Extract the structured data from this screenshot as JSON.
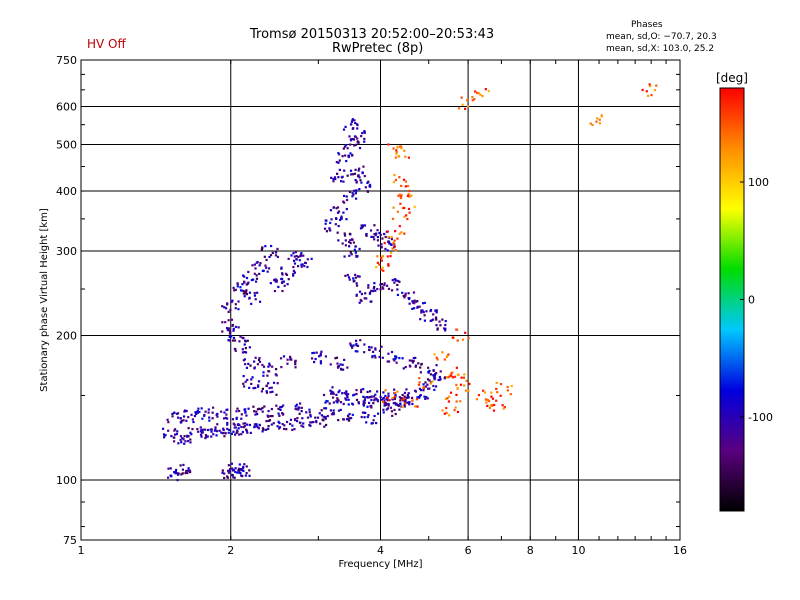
{
  "header": {
    "hv_status": "HV Off",
    "title_line1": "Tromsø 20150313 20:52:00–20:53:43",
    "title_line2": "RwPretec (8p)",
    "phases_title": "Phases",
    "phases_o": "mean, sd,O: −70.7, 20.3",
    "phases_x": "mean, sd,X: 103.0, 25.2"
  },
  "colors": {
    "hv_status": "#c00000",
    "frame": "#000000",
    "grid": "#000000"
  },
  "chart_data": {
    "type": "scatter",
    "title": "Tromsø 20150313 20:52:00–20:53:43",
    "subtitle": "RwPretec (8p)",
    "xlabel": "Frequency [MHz]",
    "ylabel": "Stationary phase Virtual Height [km]",
    "xscale": "log",
    "yscale": "log",
    "xlim": [
      1,
      16
    ],
    "ylim": [
      75,
      750
    ],
    "xticks": [
      1,
      2,
      4,
      6,
      8,
      10,
      16
    ],
    "xtick_labels": [
      "1",
      "2",
      "4",
      "6",
      "8",
      "10",
      "16"
    ],
    "xgrid": [
      2,
      4,
      6,
      8,
      10
    ],
    "yticks": [
      75,
      100,
      200,
      300,
      400,
      500,
      600,
      750
    ],
    "ytick_labels": [
      "75",
      "100",
      "200",
      "300",
      "400",
      "500",
      "600",
      "750"
    ],
    "ygrid": [
      100,
      200,
      300,
      400,
      500,
      600
    ],
    "grid": true,
    "colorbar": {
      "label": "[deg]",
      "range": [
        -180,
        180
      ],
      "ticks": [
        100,
        0,
        -100
      ],
      "tick_labels": [
        "100",
        "0",
        "-100"
      ],
      "colormap": [
        "#000000",
        "#5a0080",
        "#0000e0",
        "#00c8ff",
        "#00dc00",
        "#ffff00",
        "#ff8c00",
        "#ff0000"
      ]
    },
    "series": [
      {
        "points": [
          [
            1.5,
            125
          ],
          [
            1.6,
            122
          ],
          [
            1.7,
            125
          ],
          [
            1.8,
            126
          ],
          [
            1.9,
            127
          ],
          [
            2.0,
            128
          ],
          [
            2.1,
            128
          ],
          [
            2.2,
            129
          ],
          [
            2.4,
            130
          ],
          [
            2.6,
            131
          ],
          [
            2.8,
            132
          ],
          [
            3.0,
            133
          ],
          [
            1.55,
            135
          ],
          [
            1.65,
            136
          ],
          [
            1.75,
            137
          ],
          [
            1.9,
            138
          ],
          [
            2.1,
            138
          ],
          [
            2.3,
            139
          ],
          [
            2.5,
            140
          ],
          [
            2.8,
            141
          ],
          [
            2.0,
            103
          ],
          [
            2.05,
            105
          ],
          [
            2.1,
            104
          ],
          [
            1.55,
            103
          ],
          [
            1.6,
            105
          ],
          [
            2.0,
            230
          ],
          [
            2.1,
            250
          ],
          [
            2.2,
            265
          ],
          [
            2.3,
            280
          ],
          [
            2.4,
            300
          ],
          [
            2.6,
            270
          ],
          [
            2.8,
            285
          ],
          [
            2.2,
            240
          ],
          [
            2.5,
            255
          ],
          [
            2.7,
            290
          ],
          [
            2.0,
            210
          ],
          [
            2.05,
            200
          ],
          [
            2.1,
            190
          ],
          [
            2.2,
            175
          ],
          [
            2.4,
            170
          ],
          [
            2.6,
            176
          ],
          [
            2.2,
            160
          ],
          [
            2.4,
            155
          ],
          [
            3.5,
            550
          ],
          [
            3.6,
            520
          ],
          [
            3.5,
            500
          ],
          [
            3.4,
            470
          ],
          [
            3.6,
            440
          ],
          [
            3.7,
            410
          ],
          [
            3.3,
            430
          ],
          [
            3.5,
            390
          ],
          [
            3.2,
            340
          ],
          [
            3.3,
            360
          ],
          [
            3.4,
            320
          ],
          [
            3.5,
            300
          ],
          [
            3.8,
            330
          ],
          [
            4.0,
            320
          ],
          [
            4.1,
            310
          ],
          [
            3.5,
            260
          ],
          [
            3.7,
            240
          ],
          [
            3.9,
            250
          ],
          [
            4.2,
            255
          ],
          [
            4.5,
            240
          ],
          [
            4.8,
            230
          ],
          [
            5.0,
            220
          ],
          [
            5.2,
            210
          ],
          [
            3.0,
            180
          ],
          [
            3.3,
            175
          ],
          [
            3.6,
            190
          ],
          [
            3.9,
            185
          ],
          [
            4.2,
            180
          ],
          [
            4.6,
            175
          ],
          [
            5.0,
            170
          ],
          [
            3.2,
            148
          ],
          [
            3.5,
            147
          ],
          [
            3.8,
            146
          ],
          [
            4.1,
            145
          ],
          [
            4.4,
            146
          ],
          [
            3.3,
            152
          ],
          [
            3.7,
            151
          ],
          [
            4.0,
            150
          ],
          [
            4.4,
            150
          ],
          [
            3.1,
            137
          ],
          [
            3.4,
            136
          ],
          [
            3.8,
            135
          ],
          [
            4.2,
            140
          ],
          [
            4.5,
            145
          ],
          [
            4.8,
            152
          ],
          [
            5.0,
            158
          ],
          [
            5.2,
            165
          ]
        ]
      },
      {
        "points": [
          [
            4.3,
            490
          ],
          [
            4.4,
            480
          ],
          [
            4.4,
            420
          ],
          [
            4.5,
            400
          ],
          [
            4.5,
            380
          ],
          [
            4.4,
            360
          ],
          [
            4.3,
            330
          ],
          [
            4.2,
            310
          ],
          [
            4.1,
            290
          ],
          [
            4.0,
            280
          ],
          [
            5.6,
            168
          ],
          [
            5.7,
            162
          ],
          [
            5.8,
            158
          ],
          [
            5.6,
            150
          ],
          [
            5.5,
            140
          ],
          [
            6.5,
            150
          ],
          [
            6.7,
            146
          ],
          [
            6.9,
            140
          ],
          [
            7.1,
            155
          ],
          [
            5.9,
            610
          ],
          [
            6.4,
            640
          ],
          [
            11.0,
            560
          ],
          [
            14.0,
            650
          ],
          [
            4.2,
            150
          ],
          [
            4.6,
            145
          ],
          [
            4.9,
            160
          ],
          [
            5.3,
            180
          ],
          [
            5.8,
            200
          ]
        ]
      }
    ]
  }
}
